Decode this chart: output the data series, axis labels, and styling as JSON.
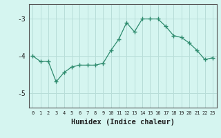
{
  "x": [
    0,
    1,
    2,
    3,
    4,
    5,
    6,
    7,
    8,
    9,
    10,
    11,
    12,
    13,
    14,
    15,
    16,
    17,
    18,
    19,
    20,
    21,
    22,
    23
  ],
  "y": [
    -4.0,
    -4.15,
    -4.15,
    -4.7,
    -4.45,
    -4.3,
    -4.25,
    -4.25,
    -4.25,
    -4.2,
    -3.85,
    -3.55,
    -3.1,
    -3.35,
    -3.0,
    -3.0,
    -3.0,
    -3.2,
    -3.45,
    -3.5,
    -3.65,
    -3.85,
    -4.1,
    -4.05
  ],
  "line_color": "#2e8b6e",
  "marker": "+",
  "marker_size": 4,
  "bg_color": "#d5f5f0",
  "grid_color": "#b8ddd8",
  "axis_color": "#555555",
  "xlabel": "Humidex (Indice chaleur)",
  "xlabel_fontsize": 7.5,
  "ylabel_ticks": [
    -5,
    -4,
    -3
  ],
  "xtick_labels": [
    "0",
    "1",
    "2",
    "3",
    "4",
    "5",
    "6",
    "7",
    "8",
    "9",
    "10",
    "11",
    "12",
    "13",
    "14",
    "15",
    "16",
    "17",
    "18",
    "19",
    "20",
    "21",
    "22",
    "23"
  ],
  "ylim": [
    -5.4,
    -2.6
  ],
  "xlim": [
    -0.5,
    23.5
  ],
  "ytick_fontsize": 7,
  "xtick_fontsize": 5
}
